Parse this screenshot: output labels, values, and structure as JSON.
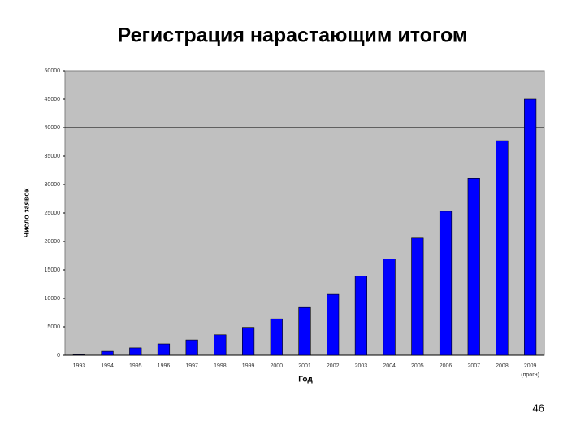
{
  "chart_data": {
    "type": "bar",
    "title": "Регистрация нарастающим итогом",
    "x_label": "Год",
    "y_label": "Число заявок",
    "categories": [
      "1993",
      "1994",
      "1995",
      "1996",
      "1997",
      "1998",
      "1999",
      "2000",
      "2001",
      "2002",
      "2003",
      "2004",
      "2005",
      "2006",
      "2007",
      "2008",
      "2009"
    ],
    "category_note": "(прогн)",
    "values": [
      100,
      700,
      1300,
      2000,
      2700,
      3600,
      4900,
      6400,
      8400,
      10700,
      13900,
      16900,
      20600,
      25300,
      31100,
      37700,
      45000
    ],
    "color": "#0000ff",
    "background": "#c0c0c0",
    "ylim": [
      0,
      50000
    ],
    "yticks": [
      0,
      5000,
      10000,
      15000,
      20000,
      25000,
      30000,
      35000,
      40000,
      45000,
      50000
    ],
    "reference_line": 40000,
    "grid": false
  },
  "page_number": "46"
}
